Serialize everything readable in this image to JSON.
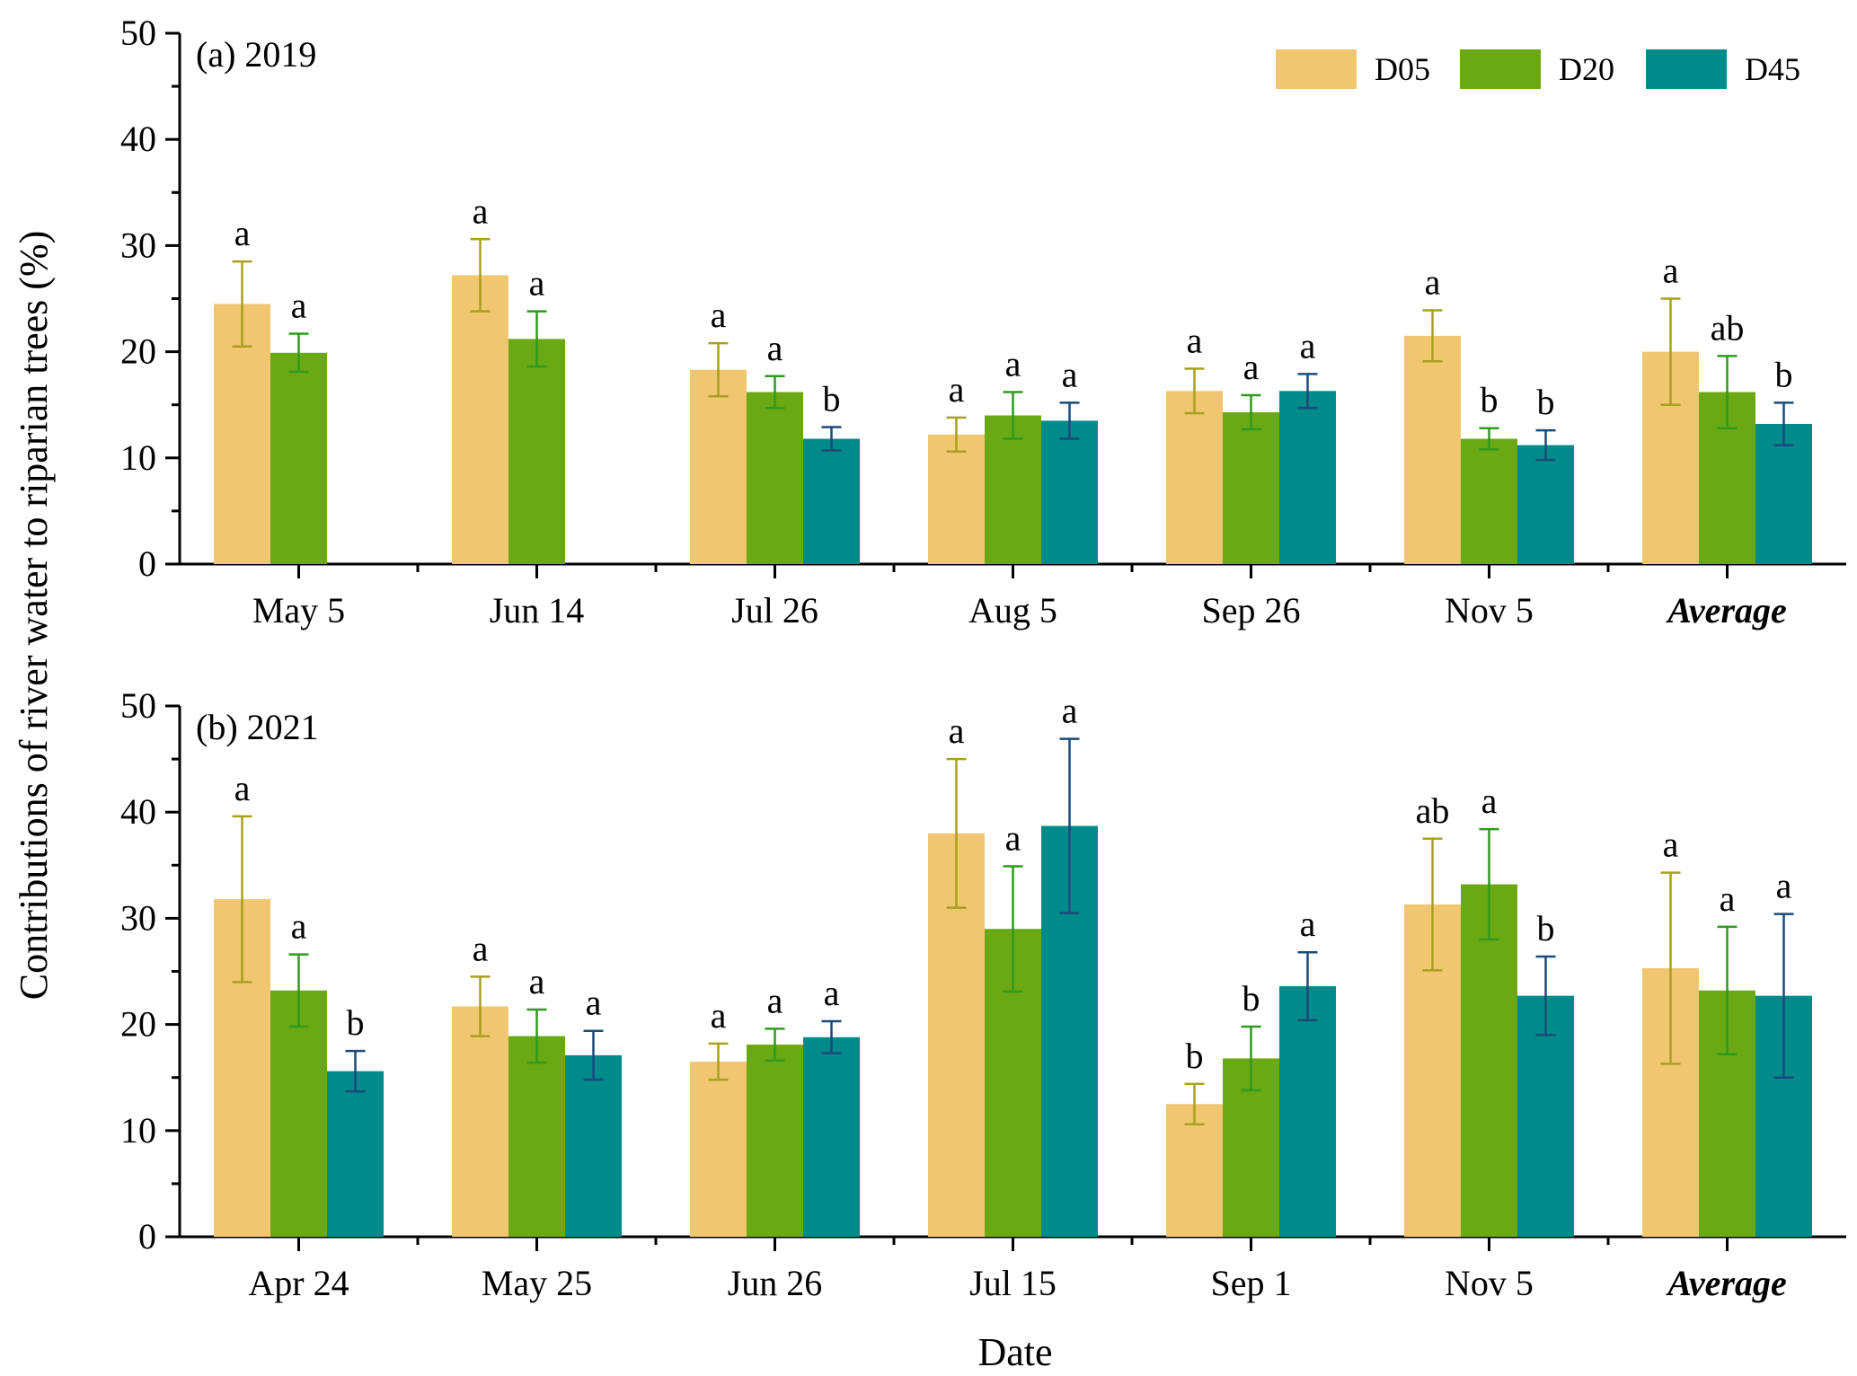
{
  "figure": {
    "ylabel": "Contributions of river water to riparian trees (%)",
    "xlabel": "Date"
  },
  "legend": [
    {
      "name": "D05",
      "color": "#f0c670"
    },
    {
      "name": "D20",
      "color": "#6aa814"
    },
    {
      "name": "D45",
      "color": "#008a8a"
    }
  ],
  "error_colors": {
    "D05": "#a8a020",
    "D20": "#2e9a1e",
    "D45": "#1a4a7a"
  },
  "chart_data": [
    {
      "type": "bar",
      "title": "(a) 2019",
      "ylim": [
        0,
        50
      ],
      "yticks": [
        0,
        10,
        20,
        30,
        40,
        50
      ],
      "categories": [
        "May 5",
        "Jun 14",
        "Jul 26",
        "Aug 5",
        "Sep 26",
        "Nov 5",
        "Average"
      ],
      "bold_categories": [
        "Average"
      ],
      "series": [
        {
          "name": "D05",
          "values": [
            24.5,
            27.2,
            18.3,
            12.2,
            16.3,
            21.5,
            20.0
          ],
          "errors": [
            4.0,
            3.4,
            2.5,
            1.6,
            2.1,
            2.4,
            5.0
          ],
          "labels": [
            "a",
            "a",
            "a",
            "a",
            "a",
            "a",
            "a"
          ]
        },
        {
          "name": "D20",
          "values": [
            19.9,
            21.2,
            16.2,
            14.0,
            14.3,
            11.8,
            16.2
          ],
          "errors": [
            1.8,
            2.6,
            1.5,
            2.2,
            1.6,
            1.0,
            3.4
          ],
          "labels": [
            "a",
            "a",
            "a",
            "a",
            "a",
            "b",
            "ab"
          ]
        },
        {
          "name": "D45",
          "values": [
            null,
            null,
            11.8,
            13.5,
            16.3,
            11.2,
            13.2
          ],
          "errors": [
            null,
            null,
            1.1,
            1.7,
            1.6,
            1.4,
            2.0
          ],
          "labels": [
            "",
            "",
            "b",
            "a",
            "a",
            "b",
            "b"
          ]
        }
      ]
    },
    {
      "type": "bar",
      "title": "(b) 2021",
      "ylim": [
        0,
        50
      ],
      "yticks": [
        0,
        10,
        20,
        30,
        40,
        50
      ],
      "categories": [
        "Apr 24",
        "May 25",
        "Jun 26",
        "Jul 15",
        "Sep 1",
        "Nov 5",
        "Average"
      ],
      "bold_categories": [
        "Average"
      ],
      "series": [
        {
          "name": "D05",
          "values": [
            31.8,
            21.7,
            16.5,
            38.0,
            12.5,
            31.3,
            25.3
          ],
          "errors": [
            7.8,
            2.8,
            1.7,
            7.0,
            1.9,
            6.2,
            9.0
          ],
          "labels": [
            "a",
            "a",
            "a",
            "a",
            "b",
            "ab",
            "a"
          ]
        },
        {
          "name": "D20",
          "values": [
            23.2,
            18.9,
            18.1,
            29.0,
            16.8,
            33.2,
            23.2
          ],
          "errors": [
            3.4,
            2.5,
            1.5,
            5.9,
            3.0,
            5.2,
            6.0
          ],
          "labels": [
            "a",
            "a",
            "a",
            "a",
            "b",
            "a",
            "a"
          ]
        },
        {
          "name": "D45",
          "values": [
            15.6,
            17.1,
            18.8,
            38.7,
            23.6,
            22.7,
            22.7
          ],
          "errors": [
            1.9,
            2.3,
            1.5,
            8.2,
            3.2,
            3.7,
            7.7
          ],
          "labels": [
            "b",
            "a",
            "a",
            "a",
            "a",
            "b",
            "a"
          ]
        }
      ]
    }
  ]
}
